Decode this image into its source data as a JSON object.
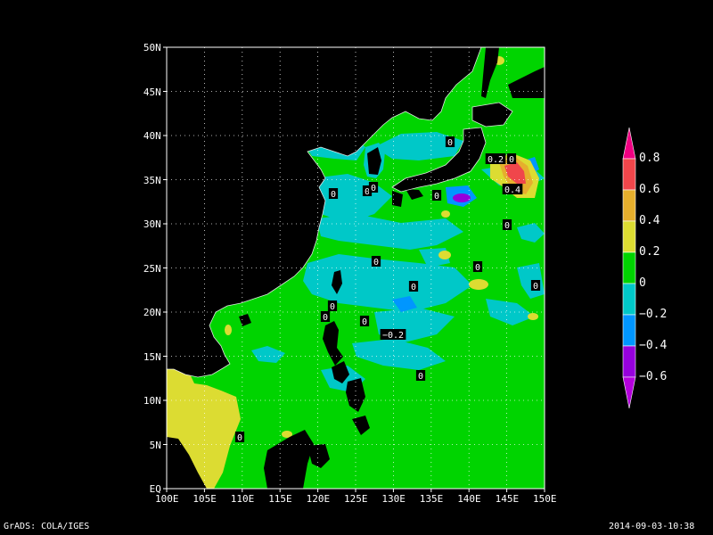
{
  "map": {
    "lon_labels": [
      "100E",
      "105E",
      "110E",
      "115E",
      "120E",
      "125E",
      "130E",
      "135E",
      "140E",
      "145E",
      "150E"
    ],
    "lat_labels": [
      "EQ",
      "5N",
      "10N",
      "15N",
      "20N",
      "25N",
      "30N",
      "35N",
      "40N",
      "45N",
      "50N"
    ],
    "contour_labels": [
      {
        "text": "0"
      },
      {
        "text": "0"
      },
      {
        "text": "0"
      },
      {
        "text": "0"
      },
      {
        "text": "0"
      },
      {
        "text": "0"
      },
      {
        "text": "0"
      },
      {
        "text": "0"
      },
      {
        "text": "0"
      },
      {
        "text": "0"
      },
      {
        "text": "0"
      },
      {
        "text": "0"
      },
      {
        "text": "0"
      },
      {
        "text": "0.2"
      },
      {
        "text": "0"
      },
      {
        "text": "0.4"
      },
      {
        "text": "−0.2"
      },
      {
        "text": "0"
      },
      {
        "text": "0"
      }
    ],
    "colors": {
      "ocean_zero_to_pos02": "#00d400",
      "neg02_to_zero": "#00c8c8",
      "neg04_to_neg02": "#0096ff",
      "neg06_to_neg04": "#9600dc",
      "pos02_to_pos04": "#dcdc32",
      "pos04_to_pos06": "#e6af2d",
      "pos06_to_pos08": "#f0464b",
      "above_pos08": "#f00082",
      "land": "#000000"
    }
  },
  "colorbar": {
    "labels": [
      "0.8",
      "0.6",
      "0.4",
      "0.2",
      "0",
      "−0.2",
      "−0.4",
      "−0.6"
    ]
  },
  "footer": {
    "left": "GrADS: COLA/IGES",
    "right": "2014-09-03-10:38"
  }
}
